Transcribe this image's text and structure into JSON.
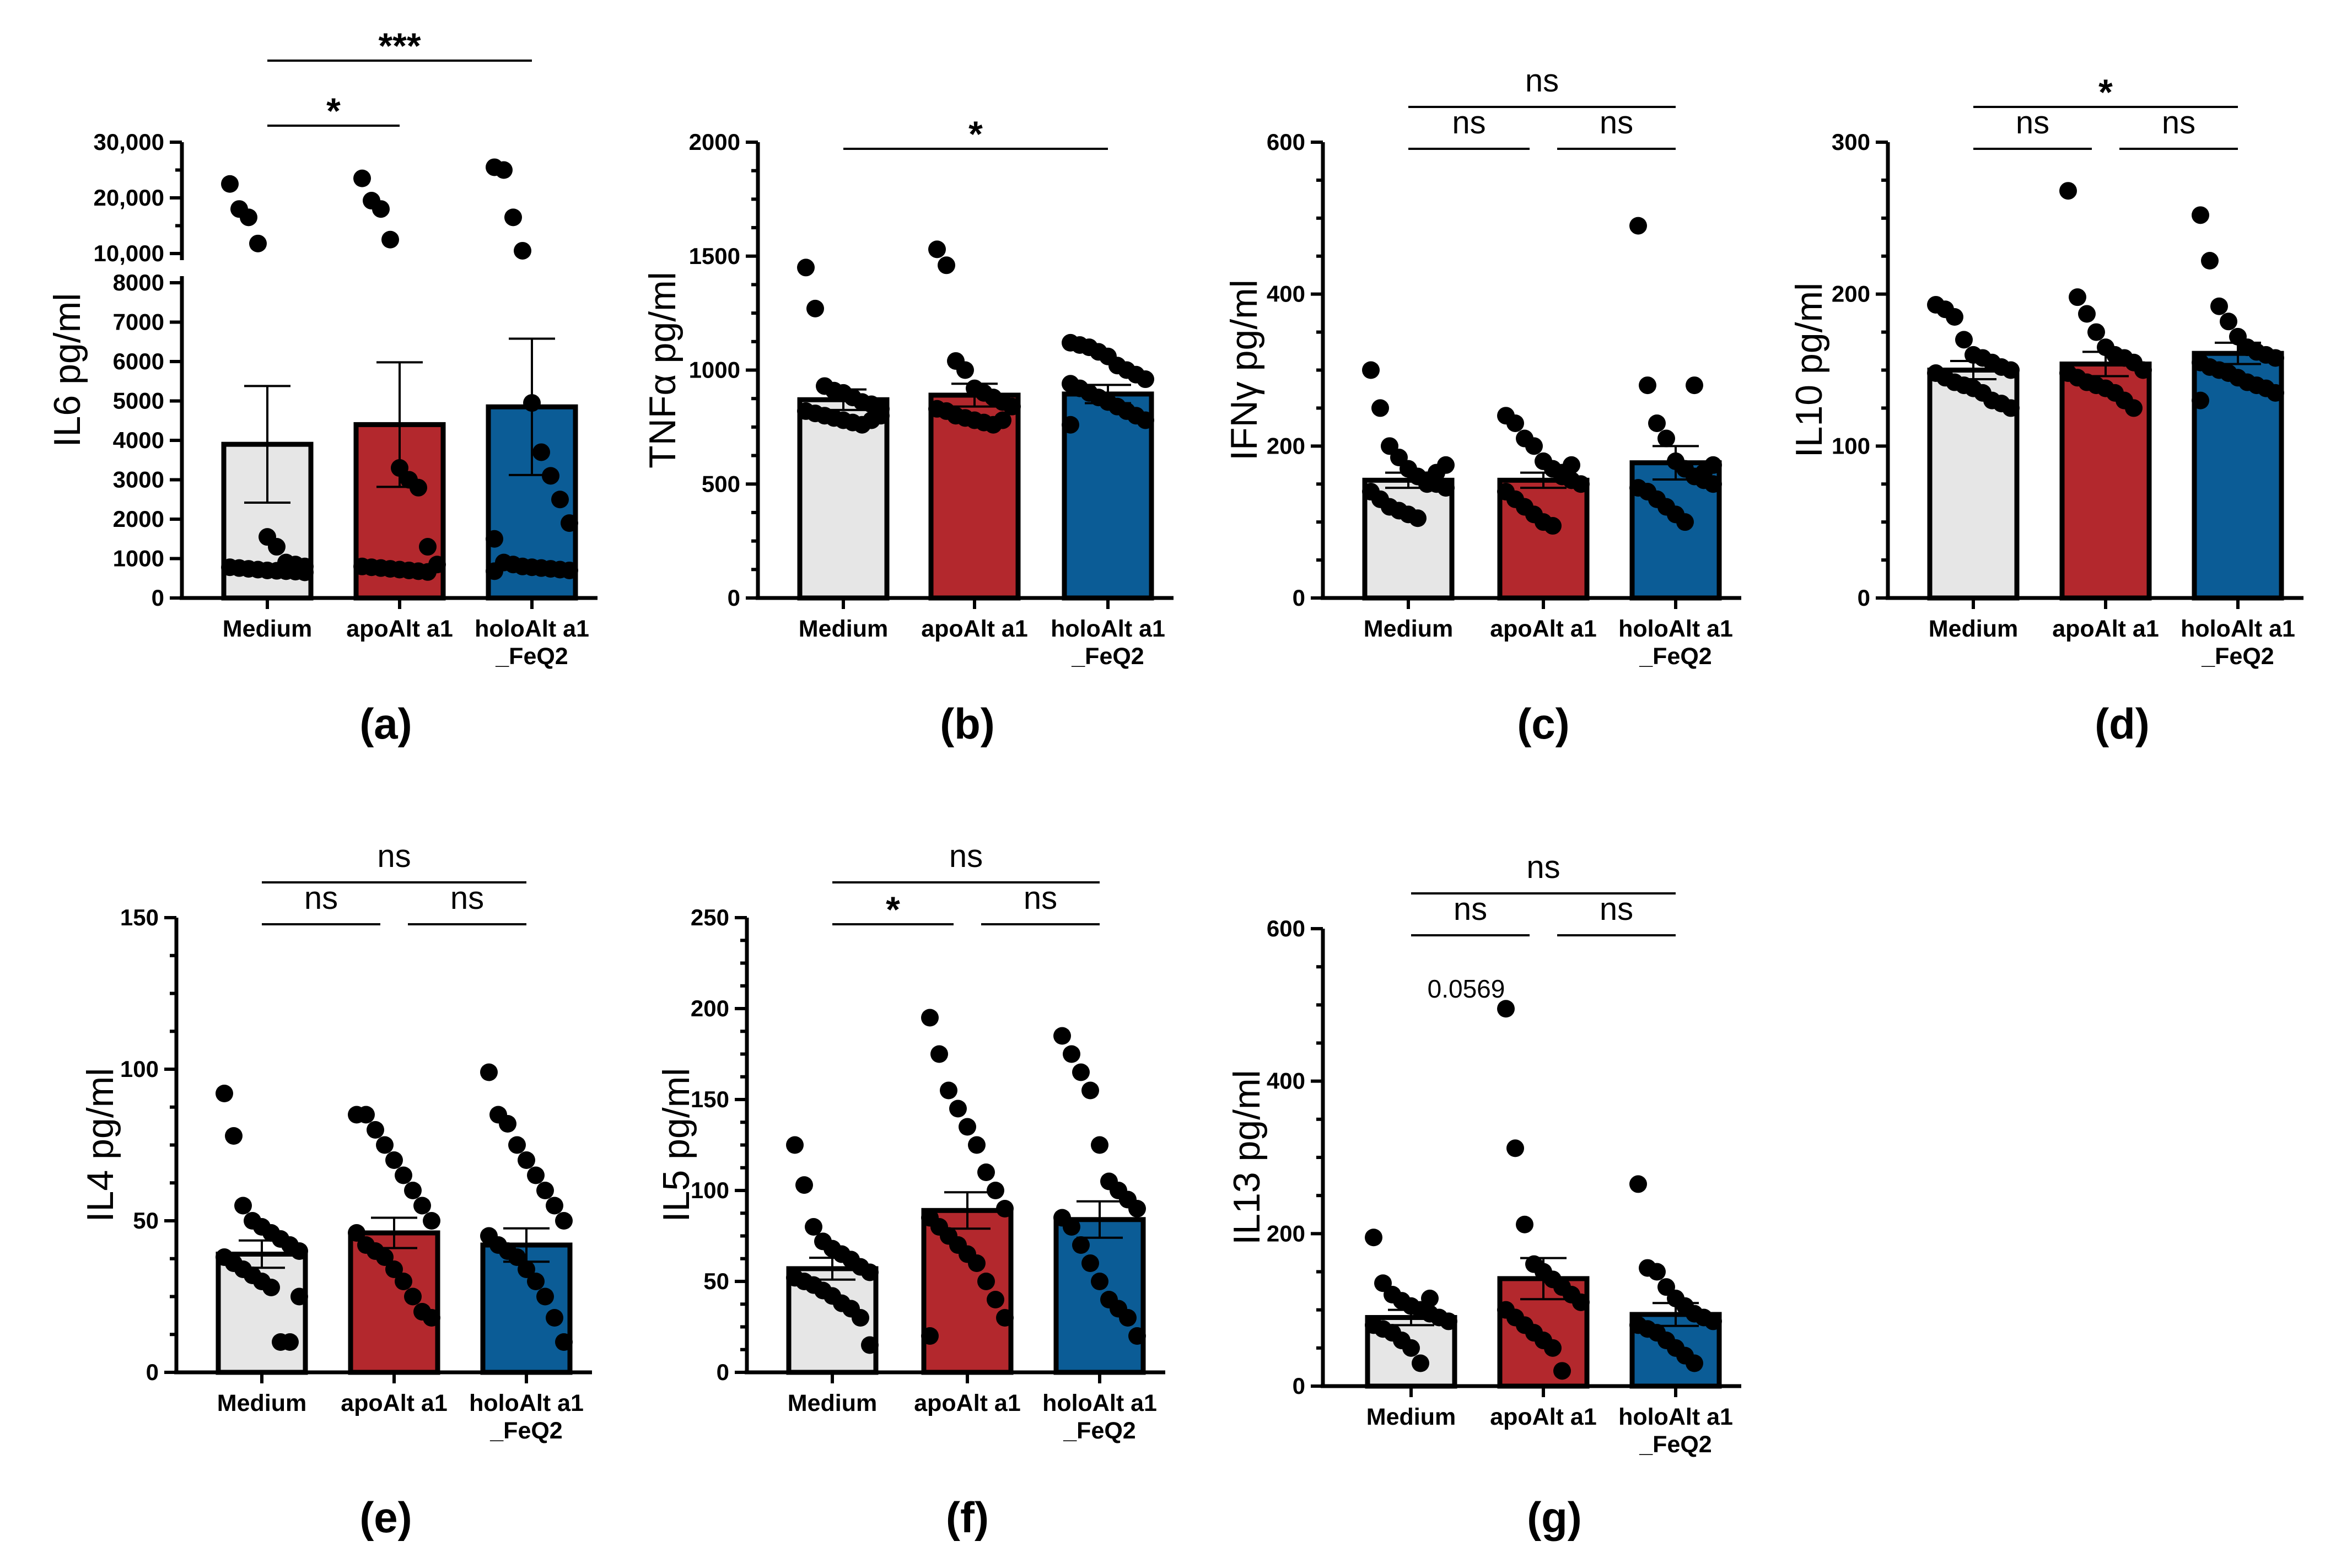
{
  "chart_data": [
    {
      "id": "a",
      "panel_label": "(a)",
      "type": "bar",
      "ylabel": "IL6 pg/ml",
      "categories": [
        "Medium",
        "apoAlt a1",
        "holoAlt a1\n_FeQ2"
      ],
      "colors": [
        "#e6e6e6",
        "#b3282d",
        "#0b5c96"
      ],
      "y_axis": "broken",
      "lower_range": [
        0,
        8000
      ],
      "upper_range": [
        10000,
        30000
      ],
      "lower_ticks": [
        "0",
        "1000",
        "2000",
        "3000",
        "4000",
        "5000",
        "6000",
        "7000",
        "8000"
      ],
      "upper_ticks": [
        "10,000",
        "20,000",
        "30,000"
      ],
      "means": [
        3900,
        4400,
        4850
      ],
      "sem": [
        1480,
        1580,
        1730
      ],
      "points": [
        [
          22500,
          18000,
          16500,
          11800,
          1550,
          1300,
          900,
          850,
          800,
          780,
          760,
          740,
          720,
          700,
          690,
          680,
          670,
          650
        ],
        [
          23500,
          19500,
          18000,
          12500,
          3300,
          3000,
          2800,
          1300,
          850,
          800,
          780,
          760,
          740,
          720,
          700,
          680,
          660
        ],
        [
          25500,
          25000,
          16500,
          10500,
          4950,
          3700,
          3100,
          2500,
          1900,
          1500,
          900,
          850,
          800,
          780,
          760,
          740,
          720,
          700,
          680
        ]
      ],
      "significance": [
        {
          "from": 0,
          "to": 1,
          "label": "*",
          "level": 1
        },
        {
          "from": 0,
          "to": 2,
          "label": "***",
          "level": 2
        }
      ]
    },
    {
      "id": "b",
      "panel_label": "(b)",
      "type": "bar",
      "ylabel": "TNFα pg/ml",
      "categories": [
        "Medium",
        "apoAlt a1",
        "holoAlt a1\n_FeQ2"
      ],
      "colors": [
        "#e6e6e6",
        "#b3282d",
        "#0b5c96"
      ],
      "ylim": [
        0,
        2000
      ],
      "ticks": [
        "0",
        "500",
        "1000",
        "1500",
        "2000"
      ],
      "means": [
        870,
        890,
        895
      ],
      "sem": [
        45,
        50,
        40
      ],
      "points": [
        [
          1450,
          1270,
          930,
          910,
          900,
          880,
          860,
          850,
          830,
          820,
          810,
          800,
          790,
          780,
          770,
          760,
          780,
          800
        ],
        [
          1530,
          1460,
          1040,
          1000,
          920,
          900,
          880,
          860,
          840,
          830,
          820,
          800,
          790,
          780,
          770,
          760,
          780
        ],
        [
          1120,
          1110,
          1100,
          1080,
          1060,
          1020,
          1000,
          980,
          960,
          940,
          920,
          900,
          880,
          860,
          840,
          820,
          800,
          780,
          760
        ]
      ],
      "significance": [
        {
          "from": 0,
          "to": 2,
          "label": "*",
          "level": 1
        }
      ]
    },
    {
      "id": "c",
      "panel_label": "(c)",
      "type": "bar",
      "ylabel": "IFNγ pg/ml",
      "categories": [
        "Medium",
        "apoAlt a1",
        "holoAlt a1\n_FeQ2"
      ],
      "colors": [
        "#e6e6e6",
        "#b3282d",
        "#0b5c96"
      ],
      "ylim": [
        0,
        600
      ],
      "ticks": [
        "0",
        "200",
        "400",
        "600"
      ],
      "means": [
        155,
        155,
        178
      ],
      "sem": [
        10,
        10,
        22
      ],
      "points": [
        [
          300,
          250,
          200,
          185,
          170,
          160,
          155,
          150,
          145,
          140,
          130,
          120,
          115,
          110,
          105,
          150,
          165,
          175
        ],
        [
          240,
          230,
          210,
          200,
          180,
          170,
          160,
          155,
          150,
          140,
          130,
          120,
          110,
          100,
          95,
          165,
          175
        ],
        [
          490,
          280,
          230,
          210,
          180,
          170,
          160,
          155,
          150,
          145,
          140,
          130,
          120,
          110,
          100,
          280,
          165,
          175
        ]
      ],
      "significance": [
        {
          "from": 0,
          "to": 1,
          "label": "ns",
          "level": 1
        },
        {
          "from": 1,
          "to": 2,
          "label": "ns",
          "level": 1
        },
        {
          "from": 0,
          "to": 2,
          "label": "ns",
          "level": 2
        }
      ]
    },
    {
      "id": "d",
      "panel_label": "(d)",
      "type": "bar",
      "ylabel": "IL10 pg/ml",
      "categories": [
        "Medium",
        "apoAlt a1",
        "holoAlt a1\n_FeQ2"
      ],
      "colors": [
        "#e6e6e6",
        "#b3282d",
        "#0b5c96"
      ],
      "ylim": [
        0,
        300
      ],
      "ticks": [
        "0",
        "100",
        "200",
        "300"
      ],
      "means": [
        150,
        154,
        161
      ],
      "sem": [
        6,
        8,
        7
      ],
      "points": [
        [
          193,
          190,
          185,
          170,
          160,
          158,
          155,
          152,
          150,
          148,
          145,
          142,
          140,
          138,
          135,
          130,
          128,
          125
        ],
        [
          268,
          198,
          187,
          175,
          165,
          160,
          158,
          155,
          150,
          148,
          145,
          142,
          140,
          138,
          135,
          130,
          125
        ],
        [
          252,
          222,
          192,
          182,
          172,
          165,
          162,
          160,
          158,
          155,
          152,
          150,
          148,
          145,
          142,
          140,
          138,
          135,
          130
        ]
      ],
      "significance": [
        {
          "from": 0,
          "to": 1,
          "label": "ns",
          "level": 1
        },
        {
          "from": 1,
          "to": 2,
          "label": "ns",
          "level": 1
        },
        {
          "from": 0,
          "to": 2,
          "label": "*",
          "level": 2
        }
      ]
    },
    {
      "id": "e",
      "panel_label": "(e)",
      "type": "bar",
      "ylabel": "IL4 pg/ml",
      "categories": [
        "Medium",
        "apoAlt a1",
        "holoAlt a1\n_FeQ2"
      ],
      "colors": [
        "#e6e6e6",
        "#b3282d",
        "#0b5c96"
      ],
      "ylim": [
        0,
        150
      ],
      "ticks": [
        "0",
        "50",
        "100",
        "150"
      ],
      "means": [
        39,
        46,
        42
      ],
      "sem": [
        4.5,
        5,
        5.5
      ],
      "points": [
        [
          92,
          78,
          55,
          50,
          48,
          46,
          44,
          42,
          40,
          38,
          36,
          34,
          32,
          30,
          28,
          10,
          10,
          25
        ],
        [
          85,
          85,
          80,
          75,
          70,
          65,
          60,
          55,
          50,
          46,
          42,
          40,
          38,
          34,
          30,
          25,
          20,
          18
        ],
        [
          99,
          85,
          82,
          75,
          70,
          65,
          60,
          55,
          50,
          45,
          42,
          40,
          38,
          34,
          30,
          25,
          18,
          10
        ]
      ],
      "significance": [
        {
          "from": 0,
          "to": 1,
          "label": "ns",
          "level": 1
        },
        {
          "from": 1,
          "to": 2,
          "label": "ns",
          "level": 1
        },
        {
          "from": 0,
          "to": 2,
          "label": "ns",
          "level": 2
        }
      ]
    },
    {
      "id": "f",
      "panel_label": "(f)",
      "type": "bar",
      "ylabel": "IL5 pg/ml",
      "categories": [
        "Medium",
        "apoAlt a1",
        "holoAlt a1\n_FeQ2"
      ],
      "colors": [
        "#e6e6e6",
        "#b3282d",
        "#0b5c96"
      ],
      "ylim": [
        0,
        250
      ],
      "ticks": [
        "0",
        "50",
        "100",
        "150",
        "200",
        "250"
      ],
      "means": [
        57,
        89,
        84
      ],
      "sem": [
        6,
        10,
        10
      ],
      "points": [
        [
          125,
          103,
          80,
          72,
          68,
          65,
          62,
          58,
          55,
          52,
          50,
          48,
          45,
          42,
          38,
          35,
          30,
          15
        ],
        [
          195,
          175,
          155,
          145,
          135,
          125,
          110,
          100,
          90,
          85,
          80,
          75,
          70,
          65,
          60,
          50,
          40,
          30,
          20
        ],
        [
          185,
          175,
          165,
          155,
          125,
          105,
          100,
          95,
          90,
          85,
          80,
          70,
          60,
          50,
          40,
          35,
          30,
          20
        ]
      ],
      "significance": [
        {
          "from": 0,
          "to": 1,
          "label": "*",
          "level": 1
        },
        {
          "from": 1,
          "to": 2,
          "label": "ns",
          "level": 1
        },
        {
          "from": 0,
          "to": 2,
          "label": "ns",
          "level": 2
        }
      ]
    },
    {
      "id": "g",
      "panel_label": "(g)",
      "type": "bar",
      "ylabel": "IL13 pg/ml",
      "categories": [
        "Medium",
        "apoAlt a1",
        "holoAlt a1\n_FeQ2"
      ],
      "colors": [
        "#e6e6e6",
        "#b3282d",
        "#0b5c96"
      ],
      "ylim": [
        0,
        600
      ],
      "ticks": [
        "0",
        "200",
        "400",
        "600"
      ],
      "means": [
        90,
        141,
        94
      ],
      "sem": [
        10,
        27,
        15
      ],
      "points": [
        [
          195,
          135,
          120,
          112,
          105,
          100,
          95,
          90,
          85,
          80,
          75,
          70,
          60,
          50,
          30,
          115
        ],
        [
          495,
          312,
          212,
          160,
          150,
          140,
          130,
          120,
          110,
          100,
          90,
          80,
          70,
          60,
          50,
          20
        ],
        [
          265,
          155,
          150,
          130,
          115,
          105,
          95,
          90,
          85,
          80,
          75,
          70,
          60,
          50,
          40,
          30
        ]
      ],
      "significance": [
        {
          "from": 0,
          "to": 1,
          "label": "ns",
          "level": 1
        },
        {
          "from": 1,
          "to": 2,
          "label": "ns",
          "level": 1
        },
        {
          "from": 0,
          "to": 2,
          "label": "ns",
          "level": 2
        }
      ],
      "annotations": [
        {
          "text": "0.0569",
          "near": "between Medium and apoAlt a1"
        }
      ]
    }
  ]
}
